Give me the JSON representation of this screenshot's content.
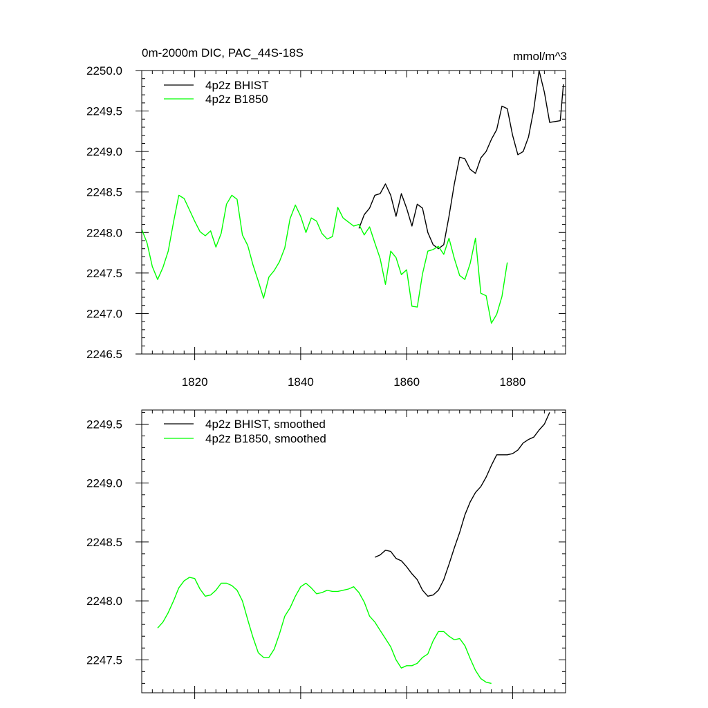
{
  "chart_data": [
    {
      "type": "line",
      "title": "0m-2000m DIC, PAC_44S-18S",
      "units": "mmol/m^3",
      "xlabel": "",
      "ylabel": "",
      "xlim": [
        1810,
        1890
      ],
      "ylim": [
        2246.5,
        2250.0
      ],
      "x_ticks": [
        1820,
        1840,
        1860,
        1880
      ],
      "x_tick_labels": [
        "1820",
        "1840",
        "1860",
        "1880"
      ],
      "y_ticks": [
        2246.5,
        2247.0,
        2247.5,
        2248.0,
        2248.5,
        2249.0,
        2249.5,
        2250.0
      ],
      "y_tick_labels": [
        "2246.5",
        "2247.0",
        "2247.5",
        "2248.0",
        "2248.5",
        "2249.0",
        "2249.5",
        "2250.0"
      ],
      "legend_position": "top-left",
      "series": [
        {
          "name": "4p2z BHIST",
          "color": "#000000",
          "x": [
            1851,
            1852,
            1853,
            1854,
            1855,
            1856,
            1857,
            1858,
            1859,
            1860,
            1861,
            1862,
            1863,
            1864,
            1865,
            1866,
            1867,
            1868,
            1869,
            1870,
            1871,
            1872,
            1873,
            1874,
            1875,
            1876,
            1877,
            1878,
            1879,
            1880,
            1881,
            1882,
            1883,
            1884,
            1885,
            1886,
            1887,
            1888,
            1889
          ],
          "values": [
            2248.05,
            2248.22,
            2248.3,
            2248.46,
            2248.48,
            2248.6,
            2248.46,
            2248.2,
            2248.48,
            2248.3,
            2248.08,
            2248.35,
            2248.3,
            2248.0,
            2247.85,
            2247.8,
            2247.85,
            2248.2,
            2248.6,
            2248.93,
            2248.91,
            2248.78,
            2248.73,
            2248.92,
            2249.0,
            2249.15,
            2249.27,
            2249.56,
            2249.53,
            2249.2,
            2248.96,
            2249.0,
            2249.18,
            2249.52,
            2250.0,
            2249.73,
            2249.36,
            2249.37,
            2249.38
          ],
          "extra_end": 2249.83
        },
        {
          "name": "4p2z B1850",
          "color": "#00ff00",
          "x": [
            1810,
            1811,
            1812,
            1813,
            1814,
            1815,
            1816,
            1817,
            1818,
            1819,
            1820,
            1821,
            1822,
            1823,
            1824,
            1825,
            1826,
            1827,
            1828,
            1829,
            1830,
            1831,
            1832,
            1833,
            1834,
            1835,
            1836,
            1837,
            1838,
            1839,
            1840,
            1841,
            1842,
            1843,
            1844,
            1845,
            1846,
            1847,
            1848,
            1849,
            1850,
            1851,
            1852,
            1853,
            1854,
            1855,
            1856,
            1857,
            1858,
            1859,
            1860,
            1861,
            1862,
            1863,
            1864,
            1865,
            1866,
            1867,
            1868,
            1869,
            1870,
            1871,
            1872,
            1873,
            1874,
            1875,
            1876,
            1877,
            1878,
            1879
          ],
          "values": [
            2248.04,
            2247.87,
            2247.58,
            2247.42,
            2247.57,
            2247.77,
            2248.13,
            2248.46,
            2248.42,
            2248.28,
            2248.14,
            2248.01,
            2247.96,
            2248.02,
            2247.82,
            2247.99,
            2248.35,
            2248.46,
            2248.41,
            2247.97,
            2247.84,
            2247.6,
            2247.4,
            2247.19,
            2247.45,
            2247.53,
            2247.64,
            2247.81,
            2248.17,
            2248.34,
            2248.2,
            2248.0,
            2248.18,
            2248.14,
            2247.99,
            2247.92,
            2247.95,
            2248.31,
            2248.18,
            2248.13,
            2248.08,
            2248.1,
            2247.97,
            2248.07,
            2247.87,
            2247.68,
            2247.36,
            2247.77,
            2247.69,
            2247.48,
            2247.54,
            2247.09,
            2247.08,
            2247.49,
            2247.77,
            2247.79,
            2247.83,
            2247.73,
            2247.93,
            2247.68,
            2247.47,
            2247.42,
            2247.62,
            2247.93,
            2247.25,
            2247.22,
            2246.88,
            2246.99,
            2247.21,
            2247.63
          ]
        }
      ]
    },
    {
      "type": "line",
      "title": "",
      "xlabel": "",
      "ylabel": "",
      "xlim": [
        1810,
        1890
      ],
      "ylim": [
        2247.22,
        2249.62
      ],
      "y_ticks": [
        2247.5,
        2248.0,
        2248.5,
        2249.0,
        2249.5
      ],
      "y_tick_labels": [
        "2247.5",
        "2248.0",
        "2248.5",
        "2249.0",
        "2249.5"
      ],
      "legend_position": "top-left",
      "series": [
        {
          "name": "4p2z BHIST, smoothed",
          "color": "#000000",
          "x": [
            1854,
            1855,
            1856,
            1857,
            1858,
            1859,
            1860,
            1861,
            1862,
            1863,
            1864,
            1865,
            1866,
            1867,
            1868,
            1869,
            1870,
            1871,
            1872,
            1873,
            1874,
            1875,
            1876,
            1877,
            1878,
            1879,
            1880,
            1881,
            1882,
            1883,
            1884,
            1885,
            1886,
            1887
          ],
          "values": [
            2248.37,
            2248.39,
            2248.43,
            2248.42,
            2248.36,
            2248.34,
            2248.29,
            2248.23,
            2248.18,
            2248.09,
            2248.04,
            2248.05,
            2248.09,
            2248.18,
            2248.31,
            2248.45,
            2248.58,
            2248.73,
            2248.84,
            2248.92,
            2248.97,
            2249.05,
            2249.15,
            2249.24,
            2249.24,
            2249.24,
            2249.25,
            2249.28,
            2249.34,
            2249.37,
            2249.39,
            2249.45,
            2249.5,
            2249.6
          ]
        },
        {
          "name": "4p2z B1850, smoothed",
          "color": "#00ff00",
          "x": [
            1813,
            1814,
            1815,
            1816,
            1817,
            1818,
            1819,
            1820,
            1821,
            1822,
            1823,
            1824,
            1825,
            1826,
            1827,
            1828,
            1829,
            1830,
            1831,
            1832,
            1833,
            1834,
            1835,
            1836,
            1837,
            1838,
            1839,
            1840,
            1841,
            1842,
            1843,
            1844,
            1845,
            1846,
            1847,
            1848,
            1849,
            1850,
            1851,
            1852,
            1853,
            1854,
            1855,
            1856,
            1857,
            1858,
            1859,
            1860,
            1861,
            1862,
            1863,
            1864,
            1865,
            1866,
            1867,
            1868,
            1869,
            1870,
            1871,
            1872,
            1873,
            1874,
            1875,
            1876
          ],
          "values": [
            2247.77,
            2247.82,
            2247.9,
            2248.0,
            2248.11,
            2248.17,
            2248.2,
            2248.19,
            2248.1,
            2248.04,
            2248.05,
            2248.09,
            2248.15,
            2248.15,
            2248.13,
            2248.09,
            2248.0,
            2247.84,
            2247.69,
            2247.56,
            2247.52,
            2247.52,
            2247.59,
            2247.72,
            2247.87,
            2247.94,
            2248.04,
            2248.12,
            2248.15,
            2248.11,
            2248.06,
            2248.07,
            2248.09,
            2248.08,
            2248.08,
            2248.09,
            2248.1,
            2248.12,
            2248.07,
            2247.99,
            2247.87,
            2247.82,
            2247.75,
            2247.68,
            2247.61,
            2247.5,
            2247.43,
            2247.45,
            2247.45,
            2247.47,
            2247.52,
            2247.55,
            2247.66,
            2247.74,
            2247.74,
            2247.7,
            2247.67,
            2247.68,
            2247.62,
            2247.51,
            2247.41,
            2247.34,
            2247.31,
            2247.3
          ]
        }
      ]
    }
  ]
}
